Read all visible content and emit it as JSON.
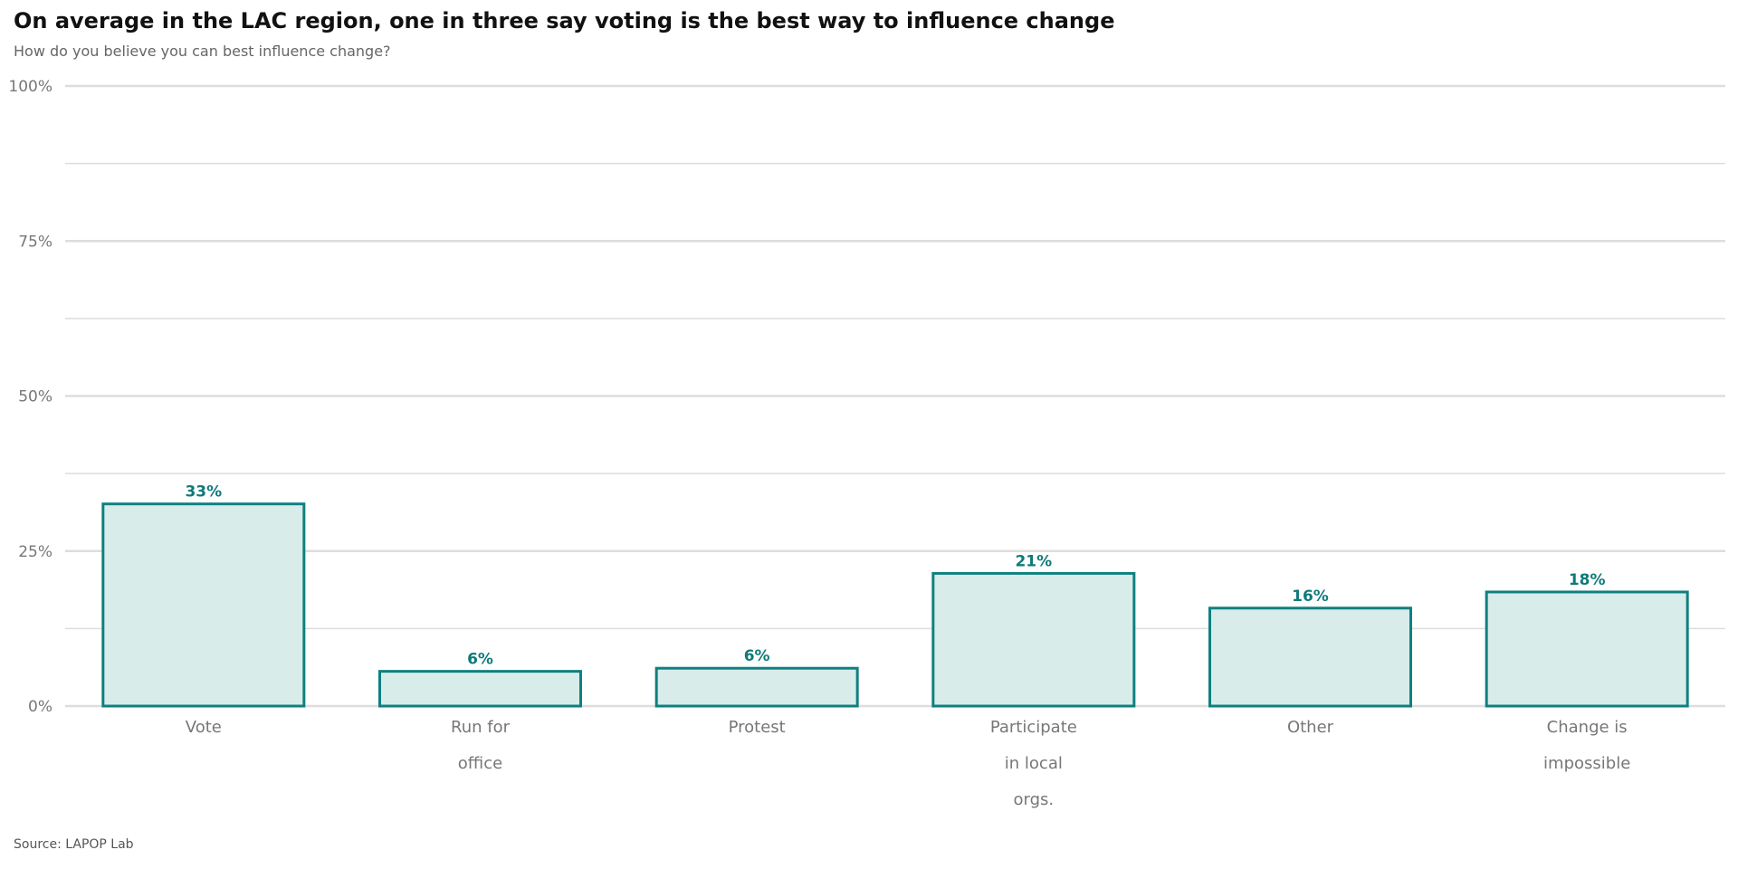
{
  "header": {
    "title": "On average in the LAC region, one in three say voting is the best way to influence change",
    "subtitle": "How do you believe you can best influence change?"
  },
  "footer": {
    "source": "Source: LAPOP Lab"
  },
  "colors": {
    "bar_fill": "#d8ecea",
    "bar_stroke": "#0f8080",
    "value_label": "#0f7a7a",
    "grid": "#dddddd",
    "axis_text": "#777777"
  },
  "chart_data": {
    "type": "bar",
    "categories": [
      [
        "Vote"
      ],
      [
        "Run for",
        "office"
      ],
      [
        "Protest"
      ],
      [
        "Participate",
        "in local",
        "orgs."
      ],
      [
        "Other"
      ],
      [
        "Change is",
        "impossible"
      ]
    ],
    "values": [
      32.6,
      5.6,
      6.1,
      21.4,
      15.8,
      18.4
    ],
    "value_labels": [
      "33%",
      "6%",
      "6%",
      "21%",
      "16%",
      "18%"
    ],
    "ylim": [
      0,
      100
    ],
    "yticks": [
      0,
      25,
      50,
      75,
      100
    ],
    "ytick_labels": [
      "0%",
      "25%",
      "50%",
      "75%",
      "100%"
    ],
    "minor_grid": [
      12.5,
      37.5,
      62.5,
      87.5
    ],
    "grid": true,
    "xlabel": "",
    "ylabel": ""
  }
}
